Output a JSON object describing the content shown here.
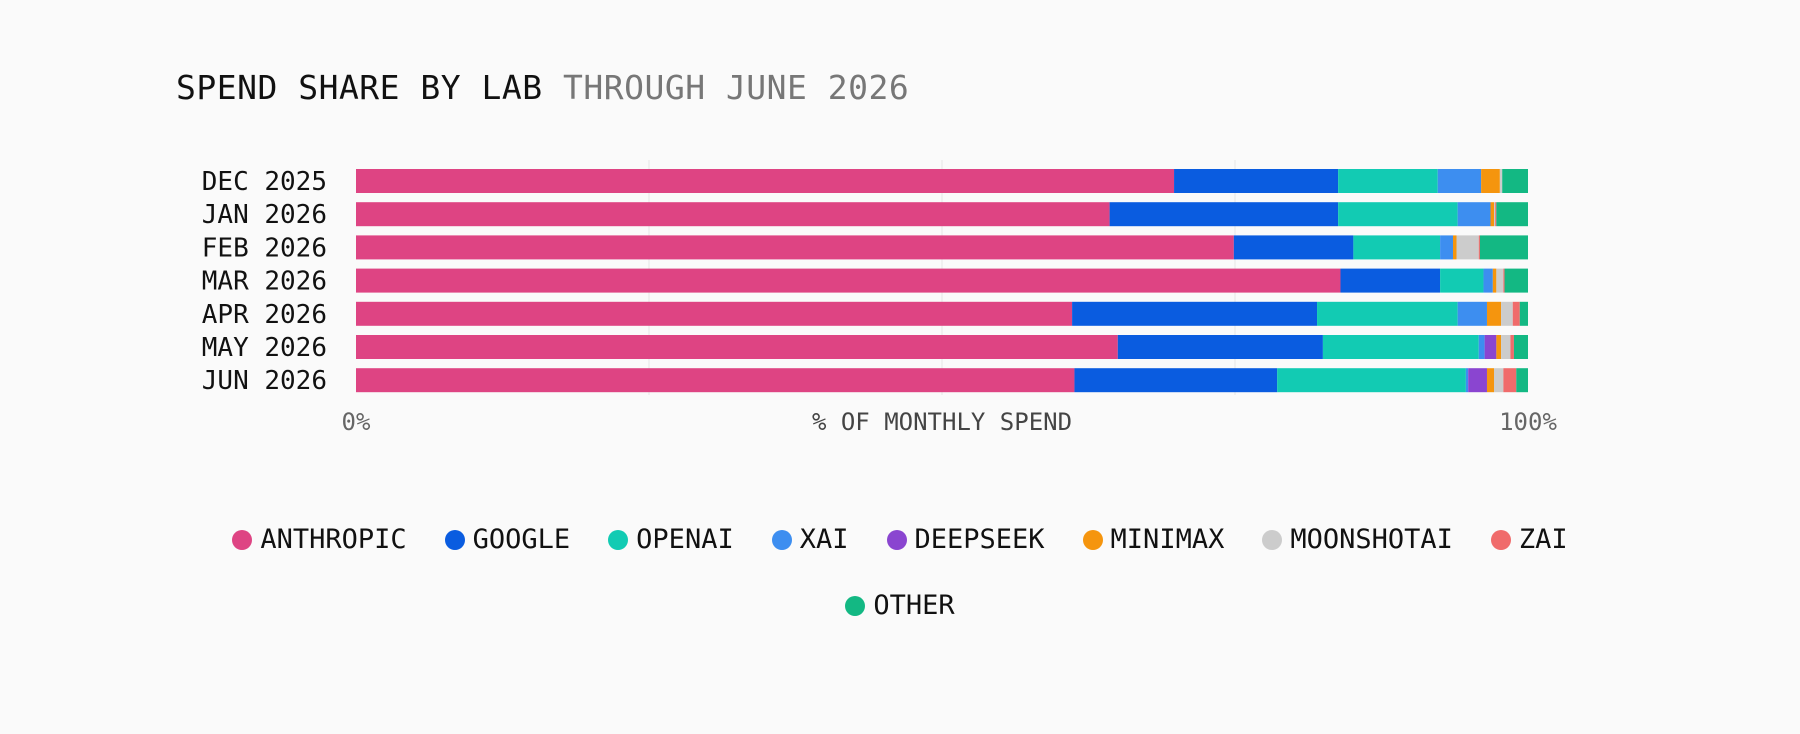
{
  "title": {
    "main": "SPEND SHARE BY LAB",
    "sub": "THROUGH JUNE 2026"
  },
  "chart_data": {
    "type": "bar",
    "orientation": "horizontal",
    "stacked": true,
    "title": "SPEND SHARE BY LAB THROUGH JUNE 2026",
    "xlabel": "% OF MONTHLY SPEND",
    "ylabel": "",
    "xlim": [
      0,
      100
    ],
    "x_tick_labels": [
      "0%",
      "100%"
    ],
    "grid": true,
    "legend_position": "bottom",
    "categories": [
      "DEC 2025",
      "JAN 2026",
      "FEB 2026",
      "MAR 2026",
      "APR 2026",
      "MAY 2026",
      "JUN 2026"
    ],
    "series": [
      {
        "name": "ANTHROPIC",
        "color": "#de4483",
        "values": [
          69.8,
          64.3,
          74.9,
          84.0,
          61.1,
          65.0,
          61.3
        ]
      },
      {
        "name": "GOOGLE",
        "color": "#0a5ce0",
        "values": [
          14.0,
          19.5,
          10.2,
          8.5,
          20.9,
          17.5,
          17.3
        ]
      },
      {
        "name": "OPENAI",
        "color": "#12cbb3",
        "values": [
          8.5,
          10.2,
          7.4,
          3.7,
          12.0,
          13.3,
          16.1
        ]
      },
      {
        "name": "XAI",
        "color": "#3d8ef0",
        "values": [
          3.7,
          2.8,
          1.1,
          0.8,
          2.5,
          0.5,
          0.2
        ]
      },
      {
        "name": "DEEPSEEK",
        "color": "#8a45d0",
        "values": [
          0.0,
          0.0,
          0.0,
          0.0,
          0.0,
          1.0,
          1.6
        ]
      },
      {
        "name": "MINIMAX",
        "color": "#f5950e",
        "values": [
          1.6,
          0.3,
          0.3,
          0.3,
          1.2,
          0.4,
          0.6
        ]
      },
      {
        "name": "MOONSHOTAI",
        "color": "#cccccc",
        "values": [
          0.2,
          0.1,
          1.9,
          0.6,
          1.0,
          0.8,
          0.8
        ]
      },
      {
        "name": "ZAI",
        "color": "#f06b6b",
        "values": [
          0.0,
          0.1,
          0.1,
          0.1,
          0.6,
          0.3,
          1.1
        ]
      },
      {
        "name": "OTHER",
        "color": "#13b883",
        "values": [
          2.2,
          2.7,
          4.1,
          2.0,
          0.7,
          1.2,
          1.0
        ]
      }
    ]
  }
}
